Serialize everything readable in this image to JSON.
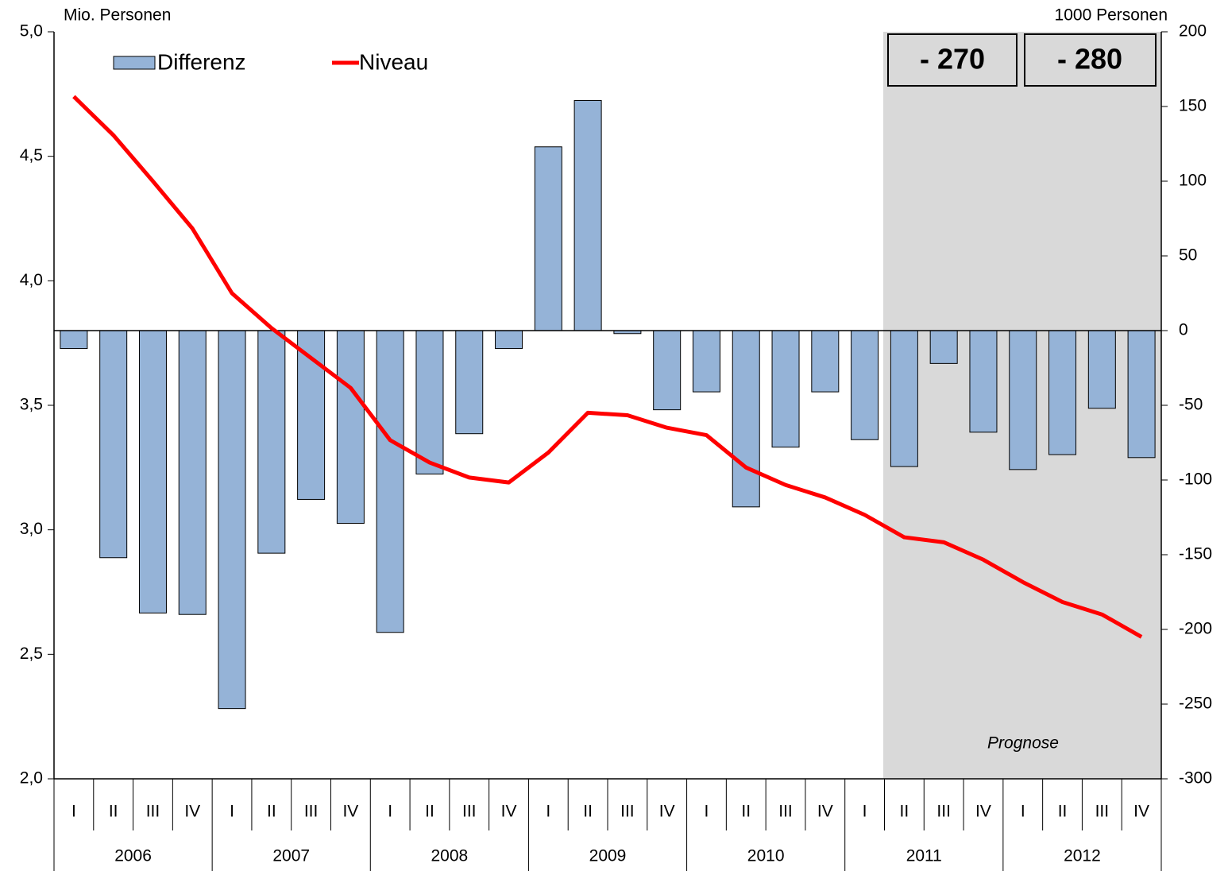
{
  "chart_data": {
    "type": "bar_line",
    "y_label": "Mio. Personen",
    "y2_label": "1000 Personen",
    "categories": [
      "I",
      "II",
      "III",
      "IV",
      "I",
      "II",
      "III",
      "IV",
      "I",
      "II",
      "III",
      "IV",
      "I",
      "II",
      "III",
      "IV",
      "I",
      "II",
      "III",
      "IV",
      "I",
      "II",
      "III",
      "IV",
      "I",
      "II",
      "III",
      "IV"
    ],
    "years": [
      "2006",
      "2007",
      "2008",
      "2009",
      "2010",
      "2011",
      "2012"
    ],
    "series": [
      {
        "name": "Differenz",
        "type": "bar",
        "axis": "y2",
        "color": "#95b3d7",
        "values": [
          -12,
          -152,
          -189,
          -190,
          -253,
          -149,
          -113,
          -129,
          -202,
          -96,
          -69,
          -12,
          123,
          154,
          -2,
          -53,
          -41,
          -118,
          -78,
          -41,
          -73,
          -91,
          -22,
          -68,
          -93,
          -83,
          -52,
          -85
        ]
      },
      {
        "name": "Niveau",
        "type": "line",
        "axis": "y",
        "color": "#ff0000",
        "values": [
          4.74,
          4.585,
          4.4,
          4.21,
          3.95,
          3.81,
          3.69,
          3.57,
          3.36,
          3.27,
          3.21,
          3.19,
          3.31,
          3.47,
          3.46,
          3.41,
          3.38,
          3.25,
          3.18,
          3.13,
          3.06,
          2.97,
          2.95,
          2.88,
          2.79,
          2.71,
          2.66,
          2.57
        ]
      }
    ],
    "ylim": [
      2,
      5
    ],
    "yticks": [
      {
        "value": 2,
        "label": "2,0"
      },
      {
        "value": 2.5,
        "label": "2,5"
      },
      {
        "value": 3,
        "label": "3,0"
      },
      {
        "value": 3.5,
        "label": "3,5"
      },
      {
        "value": 4,
        "label": "4,0"
      },
      {
        "value": 4.5,
        "label": "4,5"
      },
      {
        "value": 5,
        "label": "5,0"
      }
    ],
    "y2lim": [
      -300,
      200
    ],
    "y2ticks": [
      -300,
      -250,
      -200,
      -150,
      -100,
      -50,
      0,
      50,
      100,
      150,
      200
    ],
    "annotations": [
      "- 270",
      "- 280",
      "Prognose"
    ]
  }
}
